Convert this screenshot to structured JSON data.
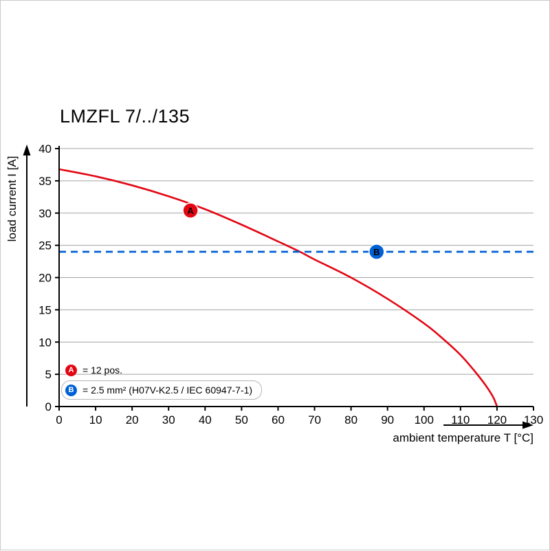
{
  "chart_data": {
    "type": "line",
    "title": "LMZFL 7/../135",
    "xlabel": "ambient temperature T [°C]",
    "ylabel": "load current I [A]",
    "xlim": [
      0,
      130
    ],
    "ylim": [
      0,
      40
    ],
    "x_ticks": [
      0,
      10,
      20,
      30,
      40,
      50,
      60,
      70,
      80,
      90,
      100,
      110,
      120,
      130
    ],
    "y_ticks": [
      0,
      5,
      10,
      15,
      20,
      25,
      30,
      35,
      40
    ],
    "grid": "horizontal-only",
    "legend_position": "bottom-left-inside",
    "colors": {
      "curve_red": "#e30613",
      "line_blue": "#0060d6",
      "grid": "#a3a3a3",
      "axis": "#000000"
    },
    "series": [
      {
        "name": "A",
        "legend": "= 12 pos.",
        "kind": "curve",
        "style": "solid",
        "color_key": "curve_red",
        "points": [
          [
            0,
            36.8
          ],
          [
            10,
            35.7
          ],
          [
            20,
            34.3
          ],
          [
            30,
            32.6
          ],
          [
            40,
            30.6
          ],
          [
            50,
            28.2
          ],
          [
            60,
            25.6
          ],
          [
            66,
            24.0
          ],
          [
            70,
            22.8
          ],
          [
            80,
            20.0
          ],
          [
            90,
            16.7
          ],
          [
            100,
            12.9
          ],
          [
            105,
            10.6
          ],
          [
            110,
            8.0
          ],
          [
            114,
            5.4
          ],
          [
            117,
            3.2
          ],
          [
            119,
            1.4
          ],
          [
            120,
            0
          ]
        ],
        "marker": {
          "x": 36,
          "y": 30.4,
          "label": "A"
        }
      },
      {
        "name": "B",
        "legend": "= 2.5 mm² (H07V-K2.5 / IEC 60947-7-1)",
        "kind": "hline",
        "style": "dashed",
        "color_key": "line_blue",
        "value": 24,
        "marker": {
          "x": 87,
          "y": 24,
          "label": "B"
        }
      }
    ]
  }
}
